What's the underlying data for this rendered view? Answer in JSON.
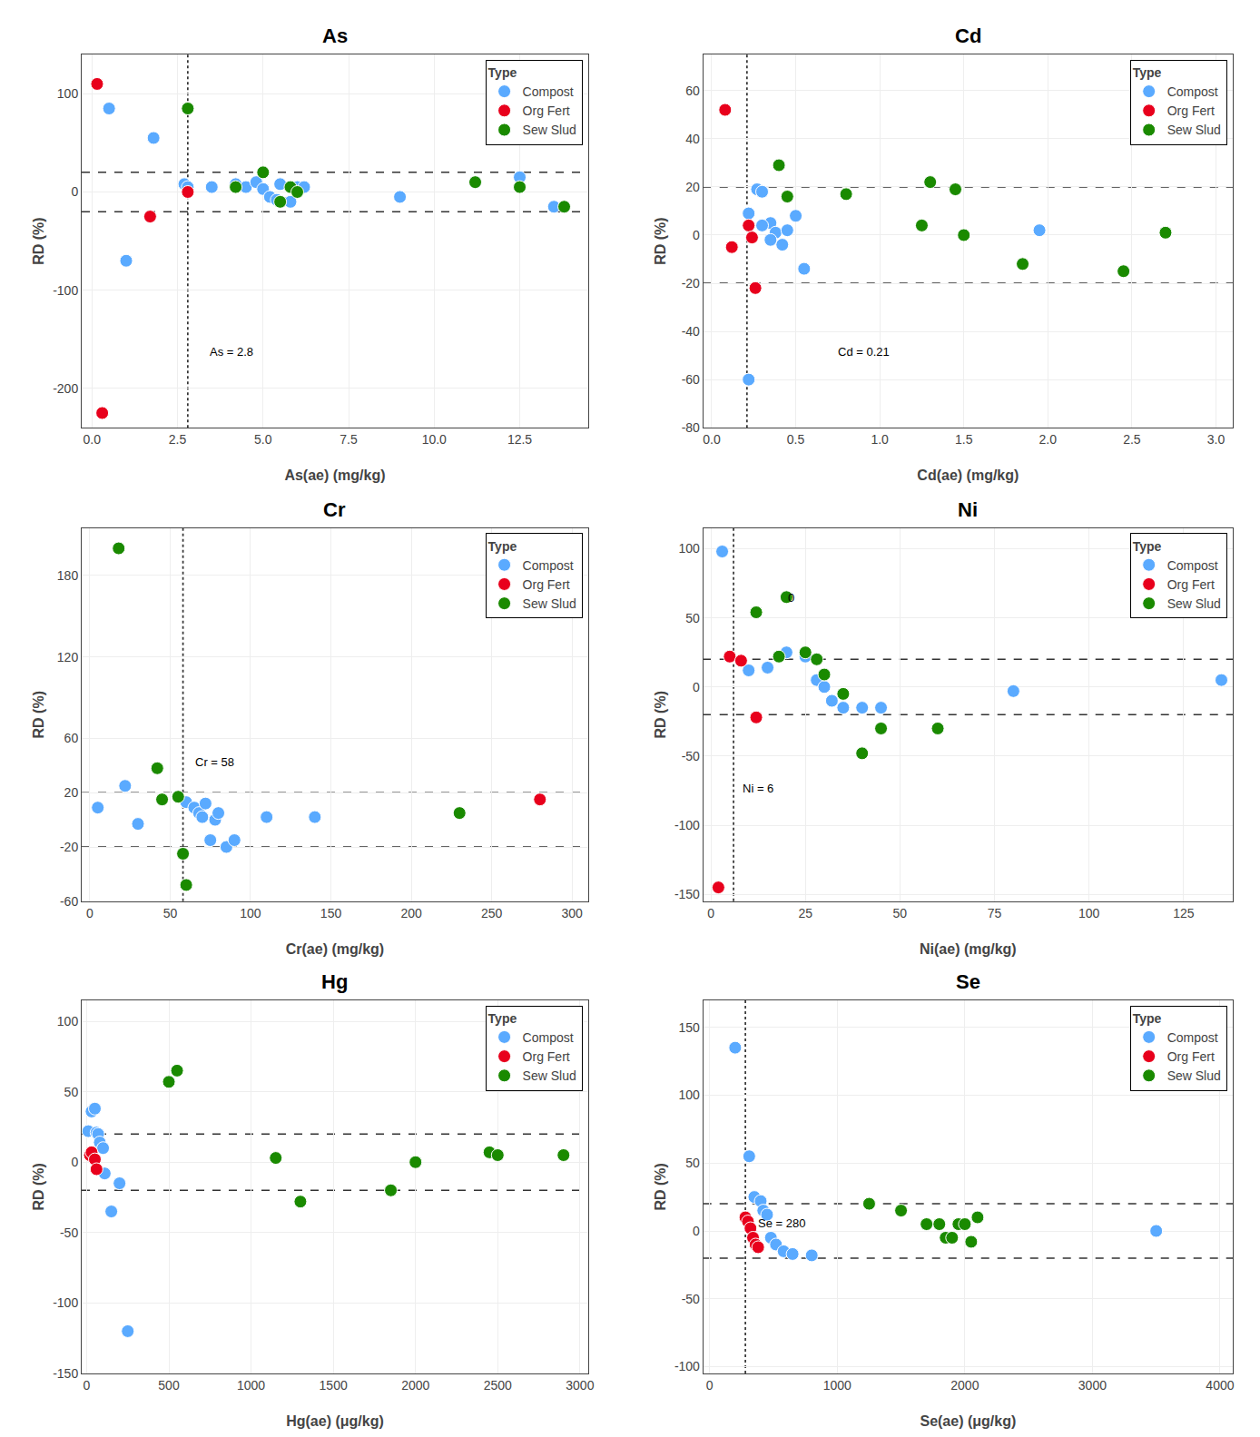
{
  "chart_data": [
    {
      "type": "scatter",
      "title": "As",
      "x_label": "As(ae) (mg/kg)",
      "y_label": "RD (%)",
      "xlim": [
        -0.3,
        14.5
      ],
      "ylim": [
        -240,
        140
      ],
      "xticks": [
        {
          "value": 0.0,
          "label": "0.0"
        },
        2.5,
        {
          "value": 5.0,
          "label": "5.0"
        },
        7.5,
        {
          "value": 10.0,
          "label": "10.0"
        },
        12.5
      ],
      "yticks": [
        -200,
        -100,
        0,
        100
      ],
      "grid": true,
      "legend": "upper right",
      "legend_title": "Type",
      "marker": "circle",
      "hlines": [
        {
          "y": 20,
          "color": "#333333",
          "line_style": "dashed"
        },
        {
          "y": -20,
          "color": "#333333",
          "line_style": "dashed"
        }
      ],
      "vlines": [
        {
          "x": 2.8,
          "color": "#333333",
          "line_style": "dotted"
        }
      ],
      "annotations": [
        {
          "x": 3.4,
          "y": -171.6,
          "text": "As = 2.8"
        }
      ],
      "series": [
        {
          "name": "Compost",
          "color": "#5AAAFF",
          "x": [
            0.5,
            1.0,
            1.8,
            2.7,
            2.8,
            3.5,
            4.2,
            4.5,
            4.8,
            5.0,
            5.2,
            5.4,
            5.5,
            5.8,
            6.0,
            6.2,
            9.0,
            11.2,
            12.5,
            13.5
          ],
          "values": [
            85,
            -70,
            55,
            8,
            5,
            5,
            8,
            5,
            10,
            3,
            -5,
            -8,
            8,
            -10,
            5,
            5,
            -5,
            10,
            15,
            -15
          ]
        },
        {
          "name": "Org Fert",
          "color": "#E8001C",
          "x": [
            0.15,
            1.7,
            2.8,
            0.3
          ],
          "values": [
            110,
            -25,
            0,
            -225
          ]
        },
        {
          "name": "Sew Slud",
          "color": "#1A8A00",
          "x": [
            2.8,
            4.2,
            5.0,
            5.5,
            5.8,
            6.0,
            11.2,
            12.5,
            13.8
          ],
          "values": [
            85,
            5,
            20,
            -10,
            5,
            0,
            10,
            5,
            -15
          ]
        }
      ]
    },
    {
      "type": "scatter",
      "title": "Cd",
      "x_label": "Cd(ae) (mg/kg)",
      "y_label": "RD (%)",
      "xlim": [
        -0.05,
        3.1
      ],
      "ylim": [
        -80,
        75
      ],
      "xticks": [
        {
          "value": 0.0,
          "label": "0.0"
        },
        0.5,
        {
          "value": 1.0,
          "label": "1.0"
        },
        1.5,
        {
          "value": 2.0,
          "label": "2.0"
        },
        2.5,
        {
          "value": 3.0,
          "label": "3.0"
        }
      ],
      "yticks": [
        -80,
        -60,
        -40,
        -20,
        0,
        20,
        40,
        60
      ],
      "grid": true,
      "legend": "upper right",
      "legend_title": "Type",
      "marker": "circle",
      "hlines": [
        {
          "y": 20,
          "color": "#333333",
          "line_style": "dashed"
        },
        {
          "y": -20,
          "color": "#333333",
          "line_style": "dashed"
        }
      ],
      "vlines": [
        {
          "x": 0.21,
          "color": "#333333",
          "line_style": "dotted"
        }
      ],
      "annotations": [
        {
          "x": 0.7375,
          "y": -52.1,
          "text": "Cd = 0.21"
        }
      ],
      "series": [
        {
          "name": "Compost",
          "color": "#5AAAFF",
          "x": [
            0.22,
            0.27,
            0.3,
            0.35,
            0.38,
            0.42,
            0.45,
            0.5,
            0.55,
            0.22,
            0.3,
            0.35,
            1.95
          ],
          "values": [
            9,
            19,
            18,
            5,
            1,
            -4,
            2,
            8,
            -14,
            -60,
            4,
            -2,
            2
          ]
        },
        {
          "name": "Org Fert",
          "color": "#E8001C",
          "x": [
            0.08,
            0.12,
            0.22,
            0.24,
            0.26
          ],
          "values": [
            52,
            -5,
            4,
            -1,
            -22
          ]
        },
        {
          "name": "Sew Slud",
          "color": "#1A8A00",
          "x": [
            0.8,
            1.25,
            1.3,
            1.45,
            1.5,
            1.85,
            2.45,
            2.7,
            0.4,
            0.45
          ],
          "values": [
            17,
            4,
            22,
            19,
            0,
            -12,
            -15,
            1,
            29,
            16
          ]
        }
      ]
    },
    {
      "type": "scatter",
      "title": "Cr",
      "x_label": "Cr(ae) (mg/kg)",
      "y_label": "RD (%)",
      "xlim": [
        -5,
        310
      ],
      "ylim": [
        -60,
        215
      ],
      "xticks": [
        0,
        50,
        100,
        150,
        200,
        250,
        300
      ],
      "yticks": [
        -60,
        -20,
        20,
        60,
        120,
        180
      ],
      "grid": true,
      "legend": "upper right",
      "legend_title": "Type",
      "marker": "circle",
      "hlines": [
        {
          "y": 20,
          "color": "#333333",
          "line_style": "dashed"
        },
        {
          "y": -20,
          "color": "#333333",
          "line_style": "dashed"
        }
      ],
      "vlines": [
        {
          "x": 58,
          "color": "#333333",
          "line_style": "dotted"
        }
      ],
      "annotations": [
        {
          "x": 64.3,
          "y": 36.25,
          "text": "Cr = 58"
        }
      ],
      "series": [
        {
          "name": "Compost",
          "color": "#5AAAFF",
          "x": [
            5,
            22,
            30,
            60,
            65,
            68,
            70,
            72,
            75,
            78,
            80,
            85,
            90,
            110,
            140
          ],
          "values": [
            9,
            25,
            -3,
            13,
            9,
            5,
            2,
            12,
            -15,
            0,
            5,
            -20,
            -15,
            2,
            2
          ]
        },
        {
          "name": "Org Fert",
          "color": "#E8001C",
          "x": [
            280
          ],
          "values": [
            15
          ]
        },
        {
          "name": "Sew Slud",
          "color": "#1A8A00",
          "x": [
            18,
            42,
            45,
            55,
            58,
            60,
            230
          ],
          "values": [
            200,
            38,
            15,
            17,
            -25,
            -48,
            5
          ]
        }
      ]
    },
    {
      "type": "scatter",
      "title": "Ni",
      "x_label": "Ni(ae) (mg/kg)",
      "y_label": "RD (%)",
      "xlim": [
        -2,
        138
      ],
      "ylim": [
        -155,
        115
      ],
      "xticks": [
        0,
        25,
        50,
        75,
        100,
        125
      ],
      "yticks": [
        -150,
        -100,
        -50,
        0,
        50,
        100
      ],
      "grid": true,
      "legend": "upper right",
      "legend_title": "Type",
      "marker": "circle",
      "hlines": [
        {
          "y": 20,
          "color": "#333333",
          "line_style": "dashed"
        },
        {
          "y": -20,
          "color": "#333333",
          "line_style": "dashed"
        }
      ],
      "vlines": [
        {
          "x": 6,
          "color": "#333333",
          "line_style": "dotted"
        }
      ],
      "annotations": [
        {
          "x": 7.8,
          "y": -79.4,
          "text": "Ni = 6"
        },
        {
          "x": 20,
          "y": 58,
          "text": "0"
        }
      ],
      "series": [
        {
          "name": "Compost",
          "color": "#5AAAFF",
          "x": [
            3,
            10,
            15,
            20,
            25,
            28,
            30,
            32,
            35,
            40,
            45,
            80,
            135
          ],
          "values": [
            98,
            12,
            14,
            25,
            22,
            5,
            0,
            -10,
            -15,
            -15,
            -15,
            -3,
            5
          ]
        },
        {
          "name": "Org Fert",
          "color": "#E8001C",
          "x": [
            2,
            5,
            8,
            12
          ],
          "values": [
            -145,
            22,
            19,
            -22
          ]
        },
        {
          "name": "Sew Slud",
          "color": "#1A8A00",
          "x": [
            12,
            18,
            20,
            25,
            28,
            30,
            35,
            40,
            45,
            60
          ],
          "values": [
            54,
            22,
            65,
            25,
            20,
            9,
            -5,
            -48,
            -30,
            -30
          ]
        }
      ]
    },
    {
      "type": "scatter",
      "title": "Hg",
      "x_label": "Hg(ae) (μg/kg)",
      "y_label": "RD (%)",
      "xlim": [
        -30,
        3050
      ],
      "ylim": [
        -150,
        115
      ],
      "xticks": [
        0,
        500,
        1000,
        1500,
        2000,
        2500,
        3000
      ],
      "yticks": [
        -150,
        -100,
        -50,
        0,
        50,
        100
      ],
      "grid": true,
      "legend": "upper right",
      "legend_title": "Type",
      "marker": "circle",
      "hlines": [
        {
          "y": 20,
          "color": "#333333",
          "line_style": "dashed"
        },
        {
          "y": -20,
          "color": "#333333",
          "line_style": "dashed"
        }
      ],
      "vlines": [],
      "annotations": [],
      "series": [
        {
          "name": "Compost",
          "color": "#5AAAFF",
          "x": [
            10,
            30,
            50,
            60,
            70,
            80,
            100,
            110,
            150,
            200,
            250
          ],
          "values": [
            22,
            36,
            38,
            21,
            20,
            14,
            10,
            -8,
            -35,
            -15,
            -120
          ]
        },
        {
          "name": "Org Fert",
          "color": "#E8001C",
          "x": [
            20,
            30,
            50,
            60
          ],
          "values": [
            5,
            7,
            2,
            -5
          ]
        },
        {
          "name": "Sew Slud",
          "color": "#1A8A00",
          "x": [
            500,
            550,
            1150,
            1300,
            1850,
            2000,
            2450,
            2500,
            2900
          ],
          "values": [
            57,
            65,
            3,
            -28,
            -20,
            0,
            7,
            5,
            5
          ]
        }
      ]
    },
    {
      "type": "scatter",
      "title": "Se",
      "x_label": "Se(ae) (μg/kg)",
      "y_label": "RD (%)",
      "xlim": [
        -50,
        4100
      ],
      "ylim": [
        -105,
        170
      ],
      "xticks": [
        0,
        1000,
        2000,
        3000,
        4000
      ],
      "yticks": [
        -100,
        -50,
        0,
        50,
        100,
        150
      ],
      "grid": true,
      "legend": "upper right",
      "legend_title": "Type",
      "marker": "circle",
      "hlines": [
        {
          "y": 20,
          "color": "#333333",
          "line_style": "dashed"
        },
        {
          "y": -20,
          "color": "#333333",
          "line_style": "dashed"
        }
      ],
      "vlines": [
        {
          "x": 280,
          "color": "#333333",
          "line_style": "dotted"
        }
      ],
      "annotations": [
        {
          "x": 365,
          "y": -0.5,
          "text": "Se = 280"
        }
      ],
      "series": [
        {
          "name": "Compost",
          "color": "#5AAAFF",
          "x": [
            200,
            310,
            350,
            400,
            420,
            450,
            480,
            520,
            580,
            650,
            800,
            3500
          ],
          "values": [
            135,
            55,
            25,
            22,
            15,
            12,
            -5,
            -10,
            -15,
            -17,
            -18,
            0
          ]
        },
        {
          "name": "Org Fert",
          "color": "#E8001C",
          "x": [
            280,
            300,
            320,
            340,
            360,
            380
          ],
          "values": [
            10,
            7,
            2,
            -5,
            -10,
            -12
          ]
        },
        {
          "name": "Sew Slud",
          "color": "#1A8A00",
          "x": [
            1250,
            1500,
            1700,
            1800,
            1850,
            1900,
            1950,
            2000,
            2050,
            2100
          ],
          "values": [
            20,
            15,
            5,
            5,
            -5,
            -5,
            5,
            5,
            -8,
            10
          ]
        }
      ]
    }
  ]
}
